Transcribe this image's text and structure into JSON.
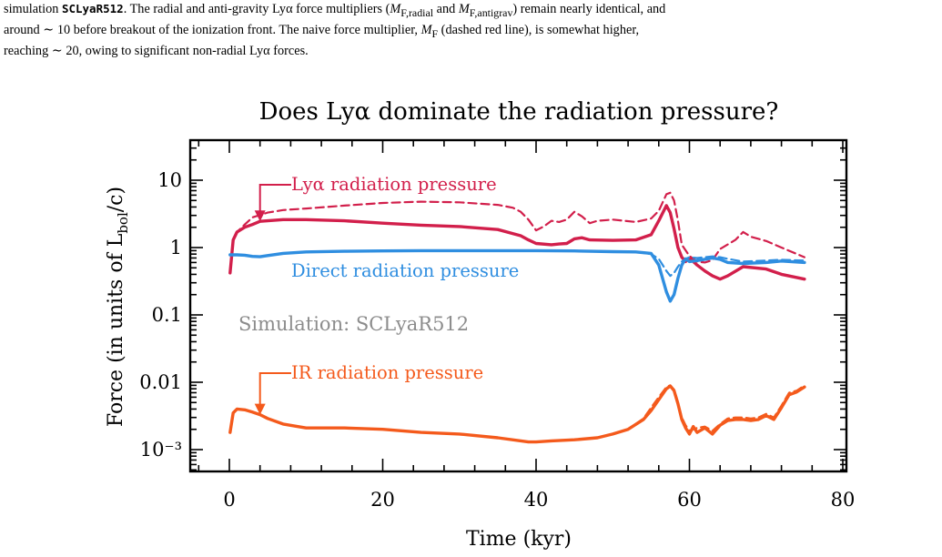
{
  "caption": {
    "line1_pre": "simulation ",
    "line1_sim": "SCLyaR512",
    "line1_mid": ". The radial and anti-gravity Lyα force multipliers (",
    "m_radial": "M",
    "m_radial_sub": "F,radial",
    "and": " and ",
    "m_antigrav": "M",
    "m_antigrav_sub": "F,antigrav",
    "line1_post": ") remain nearly identical, and",
    "line2": "around ∼ 10 before breakout of the ionization front.  The naive force multiplier, ",
    "m_naive": "M",
    "m_naive_sub": "F",
    "line2_post": " (dashed red line), is somewhat higher,",
    "line3": "reaching ∼ 20, owing to significant non-radial Lyα forces."
  },
  "chart_data": {
    "type": "line",
    "title": "Does Lyα dominate the radiation pressure?",
    "xlabel": "Time (kyr)",
    "ylabel_main": "Force (in units of L",
    "ylabel_sub": "bol",
    "ylabel_end": "/c)",
    "yscale": "log",
    "xlim": [
      -4,
      80
    ],
    "ylim": [
      0.00065,
      40
    ],
    "xticks": [
      0,
      20,
      40,
      60,
      80
    ],
    "xtick_labels": [
      "0",
      "20",
      "40",
      "60",
      "80"
    ],
    "yticks": [
      0.001,
      0.01,
      0.1,
      1,
      10
    ],
    "ytick_labels": [
      "10⁻³",
      "0.01",
      "0.1",
      "1",
      "10"
    ],
    "annotations": {
      "lya": "Lyα radiation pressure",
      "direct": "Direct radiation pressure",
      "ir": "IR radiation pressure",
      "sim": "Simulation: SCLyaR512"
    },
    "colors": {
      "lya": "#d21f4b",
      "direct": "#2f8ee0",
      "ir": "#f45a1c",
      "sim": "#8c8c8c"
    },
    "series": [
      {
        "key": "lya_solid",
        "style": "solid",
        "color_key": "lya",
        "x": [
          0.1,
          0.5,
          1,
          2,
          3,
          4,
          5,
          7,
          10,
          15,
          20,
          25,
          30,
          35,
          38,
          39,
          40,
          42,
          43,
          44,
          45,
          46,
          47,
          50,
          53,
          55,
          56,
          57,
          57.5,
          58,
          58.5,
          59,
          59.5,
          60,
          61,
          62,
          63,
          64,
          65,
          67,
          70,
          72,
          75
        ],
        "y": [
          0.42,
          1.3,
          1.7,
          2.0,
          2.2,
          2.45,
          2.5,
          2.6,
          2.6,
          2.5,
          2.3,
          2.15,
          2.05,
          1.85,
          1.5,
          1.3,
          1.15,
          1.1,
          1.13,
          1.15,
          1.35,
          1.4,
          1.3,
          1.28,
          1.3,
          1.55,
          2.5,
          4.2,
          3.3,
          1.9,
          1.0,
          0.72,
          0.62,
          0.7,
          0.55,
          0.45,
          0.38,
          0.34,
          0.38,
          0.52,
          0.48,
          0.4,
          0.34
        ]
      },
      {
        "key": "lya_dashed",
        "style": "dashed",
        "color_key": "lya",
        "x": [
          0.1,
          0.5,
          1,
          2,
          3,
          5,
          7,
          10,
          15,
          20,
          25,
          30,
          35,
          37,
          38,
          39,
          40,
          41,
          42,
          43,
          44,
          45,
          46,
          47,
          48,
          50,
          53,
          55,
          56,
          57,
          57.5,
          58,
          58.5,
          59,
          60,
          61,
          62,
          63,
          64,
          66,
          67,
          68,
          70,
          72,
          75
        ],
        "y": [
          0.42,
          1.3,
          1.7,
          2.2,
          2.8,
          3.3,
          3.6,
          3.8,
          4.2,
          4.6,
          4.8,
          4.7,
          4.3,
          3.9,
          3.4,
          2.6,
          1.8,
          2.05,
          2.5,
          2.4,
          2.6,
          3.4,
          2.9,
          2.3,
          2.5,
          2.6,
          2.4,
          2.7,
          3.5,
          6.2,
          6.5,
          5.0,
          2.5,
          1.1,
          0.75,
          0.62,
          0.6,
          0.65,
          0.95,
          1.3,
          1.7,
          1.45,
          1.25,
          1.0,
          0.72
        ]
      },
      {
        "key": "direct_solid",
        "style": "solid",
        "color_key": "direct",
        "x": [
          0.1,
          1,
          2,
          3,
          4,
          5,
          7,
          10,
          15,
          20,
          25,
          30,
          35,
          40,
          45,
          50,
          53,
          55,
          56,
          57,
          57.5,
          58,
          58.5,
          59,
          59.5,
          60,
          61,
          62,
          63,
          64,
          65,
          67,
          70,
          72,
          75
        ],
        "y": [
          0.78,
          0.78,
          0.77,
          0.74,
          0.73,
          0.76,
          0.82,
          0.86,
          0.88,
          0.89,
          0.9,
          0.9,
          0.9,
          0.9,
          0.89,
          0.87,
          0.86,
          0.82,
          0.55,
          0.22,
          0.16,
          0.2,
          0.35,
          0.55,
          0.68,
          0.62,
          0.64,
          0.67,
          0.7,
          0.67,
          0.6,
          0.58,
          0.6,
          0.63,
          0.6
        ]
      },
      {
        "key": "direct_dashed",
        "style": "dashed",
        "color_key": "direct",
        "x": [
          53,
          55,
          56,
          57,
          57.5,
          58,
          58.5,
          59,
          59.5,
          60,
          61,
          62,
          63,
          64,
          65,
          67,
          70,
          72,
          75
        ],
        "y": [
          0.86,
          0.8,
          0.68,
          0.45,
          0.38,
          0.42,
          0.52,
          0.62,
          0.68,
          0.72,
          0.7,
          0.72,
          0.74,
          0.72,
          0.68,
          0.62,
          0.64,
          0.66,
          0.64
        ]
      },
      {
        "key": "ir_solid",
        "style": "solid",
        "color_key": "ir",
        "x": [
          0.1,
          0.5,
          1,
          2,
          3,
          4,
          5,
          7,
          10,
          15,
          20,
          25,
          30,
          35,
          39,
          40,
          42,
          45,
          48,
          50,
          52,
          54,
          55,
          56,
          57,
          57.5,
          58,
          58.5,
          59,
          59.5,
          60,
          60.5,
          61,
          62,
          63,
          64,
          65,
          66,
          67,
          68,
          69,
          70,
          71,
          72,
          73,
          74,
          75
        ],
        "y": [
          0.0018,
          0.0035,
          0.004,
          0.0039,
          0.0036,
          0.0033,
          0.0029,
          0.0024,
          0.0021,
          0.0021,
          0.002,
          0.0018,
          0.0017,
          0.0015,
          0.0013,
          0.0013,
          0.00135,
          0.0014,
          0.0015,
          0.0017,
          0.002,
          0.0028,
          0.0038,
          0.0055,
          0.008,
          0.0088,
          0.0075,
          0.0048,
          0.0028,
          0.0021,
          0.0017,
          0.0022,
          0.0018,
          0.0021,
          0.0017,
          0.0023,
          0.0027,
          0.0028,
          0.0028,
          0.0027,
          0.0028,
          0.0032,
          0.0028,
          0.0042,
          0.0065,
          0.0072,
          0.0085
        ]
      },
      {
        "key": "ir_dashed",
        "style": "dashed",
        "color_key": "ir",
        "x": [
          50,
          52,
          54,
          55,
          56,
          57,
          57.5,
          58,
          58.5,
          59,
          59.5,
          60,
          61,
          62,
          63,
          64,
          65,
          66,
          67,
          68,
          69,
          70,
          71,
          72,
          73,
          74,
          75
        ],
        "y": [
          0.0017,
          0.002,
          0.0029,
          0.0042,
          0.006,
          0.0085,
          0.009,
          0.0078,
          0.005,
          0.003,
          0.0023,
          0.0019,
          0.0021,
          0.0022,
          0.0019,
          0.0024,
          0.0029,
          0.003,
          0.003,
          0.0029,
          0.003,
          0.0034,
          0.003,
          0.0045,
          0.007,
          0.0075,
          0.009
        ]
      }
    ]
  }
}
